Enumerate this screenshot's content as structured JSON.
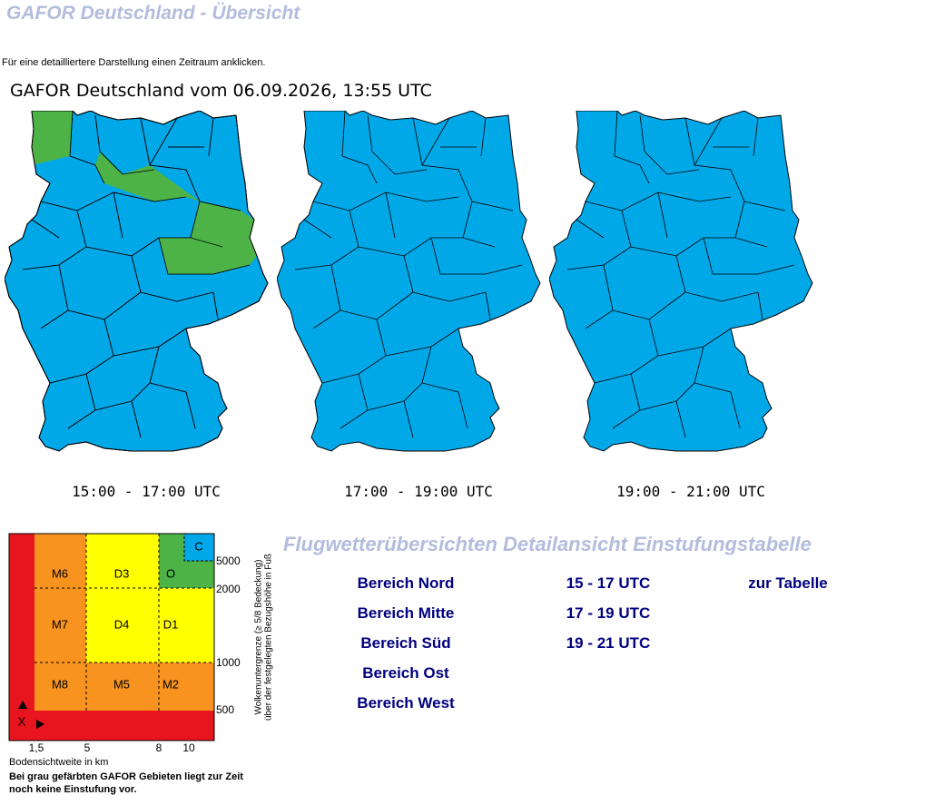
{
  "header": {
    "title": "GAFOR Deutschland - Übersicht",
    "instruction": "Für eine detailliertere Darstellung einen Zeitraum anklicken."
  },
  "map_title": "GAFOR Deutschland vom 06.09.2026, 13:55 UTC",
  "maps": [
    {
      "label": "15:00 - 17:00 UTC"
    },
    {
      "label": "17:00 - 19:00 UTC"
    },
    {
      "label": "19:00 - 21:00 UTC"
    }
  ],
  "legend": {
    "cells": [
      "M6",
      "D3",
      "O",
      "C",
      "M7",
      "D4",
      "D1",
      "M8",
      "M5",
      "M2",
      "X"
    ],
    "y_ticks": [
      "5000",
      "2000",
      "1000",
      "500"
    ],
    "x_ticks": [
      "1,5",
      "5",
      "8",
      "10"
    ],
    "y_axis_label": [
      "Wolkenuntergrenze (≥ 5/8 Bedeckung)",
      "über der festgelegten Bezugshöhe in Fuß"
    ],
    "x_axis_label": "Bodensichtweite in km",
    "note": [
      "Bei grau gefärbten GAFOR Gebieten liegt zur Zeit",
      "noch keine Einstufung vor."
    ]
  },
  "detail": {
    "title": "Flugwetterübersichten Detailansicht Einstufungstabelle",
    "regions": [
      "Bereich Nord",
      "Bereich Mitte",
      "Bereich Süd",
      "Bereich Ost",
      "Bereich West"
    ],
    "times": [
      "15 - 17 UTC",
      "17 - 19 UTC",
      "19 - 21 UTC"
    ],
    "table_link": "zur Tabelle"
  }
}
